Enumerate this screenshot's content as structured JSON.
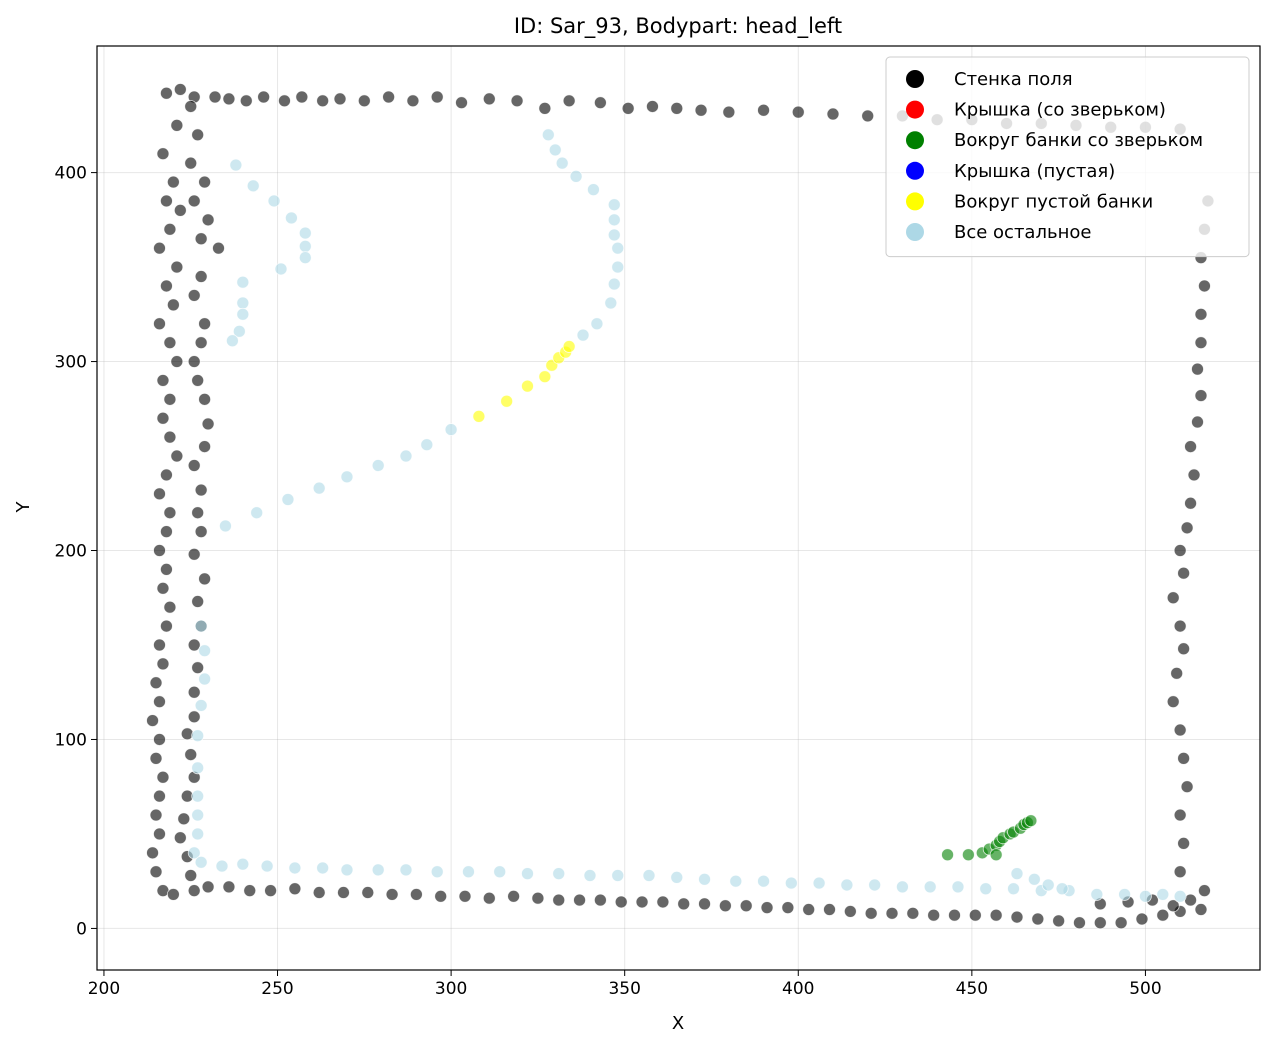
{
  "chart_data": {
    "type": "scatter",
    "title": "ID: Sar_93, Bodypart: head_left",
    "xlabel": "X",
    "ylabel": "Y",
    "xlim": [
      198,
      533
    ],
    "ylim": [
      -22,
      467
    ],
    "xticks": [
      200,
      250,
      300,
      350,
      400,
      450,
      500
    ],
    "yticks": [
      0,
      100,
      200,
      300,
      400
    ],
    "grid": true,
    "legend_position": "top-right",
    "series": [
      {
        "name": "Стенка поля",
        "color": "#000000",
        "alpha": 0.6,
        "points": [
          [
            218,
            442
          ],
          [
            222,
            444
          ],
          [
            226,
            440
          ],
          [
            232,
            440
          ],
          [
            236,
            439
          ],
          [
            241,
            438
          ],
          [
            246,
            440
          ],
          [
            252,
            438
          ],
          [
            257,
            440
          ],
          [
            263,
            438
          ],
          [
            268,
            439
          ],
          [
            275,
            438
          ],
          [
            282,
            440
          ],
          [
            289,
            438
          ],
          [
            296,
            440
          ],
          [
            303,
            437
          ],
          [
            311,
            439
          ],
          [
            319,
            438
          ],
          [
            327,
            434
          ],
          [
            334,
            438
          ],
          [
            343,
            437
          ],
          [
            351,
            434
          ],
          [
            358,
            435
          ],
          [
            365,
            434
          ],
          [
            372,
            433
          ],
          [
            380,
            432
          ],
          [
            390,
            433
          ],
          [
            400,
            432
          ],
          [
            410,
            431
          ],
          [
            420,
            430
          ],
          [
            430,
            430
          ],
          [
            440,
            428
          ],
          [
            450,
            428
          ],
          [
            460,
            426
          ],
          [
            470,
            426
          ],
          [
            480,
            425
          ],
          [
            490,
            424
          ],
          [
            500,
            424
          ],
          [
            510,
            423
          ],
          [
            221,
            425
          ],
          [
            217,
            410
          ],
          [
            220,
            395
          ],
          [
            218,
            385
          ],
          [
            222,
            380
          ],
          [
            219,
            370
          ],
          [
            216,
            360
          ],
          [
            221,
            350
          ],
          [
            218,
            340
          ],
          [
            220,
            330
          ],
          [
            216,
            320
          ],
          [
            219,
            310
          ],
          [
            221,
            300
          ],
          [
            217,
            290
          ],
          [
            219,
            280
          ],
          [
            217,
            270
          ],
          [
            219,
            260
          ],
          [
            221,
            250
          ],
          [
            218,
            240
          ],
          [
            216,
            230
          ],
          [
            219,
            220
          ],
          [
            218,
            210
          ],
          [
            216,
            200
          ],
          [
            218,
            190
          ],
          [
            217,
            180
          ],
          [
            219,
            170
          ],
          [
            218,
            160
          ],
          [
            216,
            150
          ],
          [
            217,
            140
          ],
          [
            215,
            130
          ],
          [
            216,
            120
          ],
          [
            214,
            110
          ],
          [
            216,
            100
          ],
          [
            215,
            90
          ],
          [
            217,
            80
          ],
          [
            216,
            70
          ],
          [
            215,
            60
          ],
          [
            216,
            50
          ],
          [
            214,
            40
          ],
          [
            215,
            30
          ],
          [
            217,
            20
          ],
          [
            220,
            18
          ],
          [
            225,
            435
          ],
          [
            227,
            420
          ],
          [
            225,
            405
          ],
          [
            229,
            395
          ],
          [
            226,
            385
          ],
          [
            230,
            375
          ],
          [
            228,
            365
          ],
          [
            233,
            360
          ],
          [
            228,
            345
          ],
          [
            226,
            335
          ],
          [
            229,
            320
          ],
          [
            228,
            310
          ],
          [
            226,
            300
          ],
          [
            227,
            290
          ],
          [
            229,
            280
          ],
          [
            230,
            267
          ],
          [
            229,
            255
          ],
          [
            226,
            245
          ],
          [
            228,
            232
          ],
          [
            227,
            220
          ],
          [
            228,
            210
          ],
          [
            226,
            198
          ],
          [
            229,
            185
          ],
          [
            227,
            173
          ],
          [
            228,
            160
          ],
          [
            226,
            150
          ],
          [
            227,
            138
          ],
          [
            226,
            125
          ],
          [
            226,
            112
          ],
          [
            224,
            103
          ],
          [
            225,
            92
          ],
          [
            226,
            80
          ],
          [
            224,
            70
          ],
          [
            223,
            58
          ],
          [
            222,
            48
          ],
          [
            224,
            38
          ],
          [
            225,
            28
          ],
          [
            226,
            20
          ],
          [
            230,
            22
          ],
          [
            236,
            22
          ],
          [
            242,
            20
          ],
          [
            248,
            20
          ],
          [
            255,
            21
          ],
          [
            262,
            19
          ],
          [
            269,
            19
          ],
          [
            276,
            19
          ],
          [
            283,
            18
          ],
          [
            290,
            18
          ],
          [
            297,
            17
          ],
          [
            304,
            17
          ],
          [
            311,
            16
          ],
          [
            318,
            17
          ],
          [
            325,
            16
          ],
          [
            331,
            15
          ],
          [
            337,
            15
          ],
          [
            343,
            15
          ],
          [
            349,
            14
          ],
          [
            355,
            14
          ],
          [
            361,
            14
          ],
          [
            367,
            13
          ],
          [
            373,
            13
          ],
          [
            379,
            12
          ],
          [
            385,
            12
          ],
          [
            391,
            11
          ],
          [
            397,
            11
          ],
          [
            403,
            10
          ],
          [
            409,
            10
          ],
          [
            415,
            9
          ],
          [
            421,
            8
          ],
          [
            427,
            8
          ],
          [
            433,
            8
          ],
          [
            439,
            7
          ],
          [
            445,
            7
          ],
          [
            451,
            7
          ],
          [
            457,
            7
          ],
          [
            463,
            6
          ],
          [
            469,
            5
          ],
          [
            475,
            4
          ],
          [
            481,
            3
          ],
          [
            487,
            3
          ],
          [
            493,
            3
          ],
          [
            499,
            5
          ],
          [
            505,
            7
          ],
          [
            510,
            9
          ],
          [
            516,
            10
          ],
          [
            487,
            13
          ],
          [
            495,
            14
          ],
          [
            502,
            15
          ],
          [
            508,
            12
          ],
          [
            513,
            15
          ],
          [
            517,
            20
          ],
          [
            510,
            30
          ],
          [
            511,
            45
          ],
          [
            510,
            60
          ],
          [
            512,
            75
          ],
          [
            511,
            90
          ],
          [
            510,
            105
          ],
          [
            508,
            120
          ],
          [
            509,
            135
          ],
          [
            511,
            148
          ],
          [
            510,
            160
          ],
          [
            508,
            175
          ],
          [
            511,
            188
          ],
          [
            510,
            200
          ],
          [
            512,
            212
          ],
          [
            513,
            225
          ],
          [
            514,
            240
          ],
          [
            513,
            255
          ],
          [
            515,
            268
          ],
          [
            516,
            282
          ],
          [
            515,
            296
          ],
          [
            516,
            310
          ],
          [
            516,
            325
          ],
          [
            517,
            340
          ],
          [
            516,
            355
          ],
          [
            517,
            370
          ],
          [
            518,
            385
          ]
        ]
      },
      {
        "name": "Крышка (со зверьком)",
        "color": "#ff0000",
        "alpha": 0.6,
        "points": []
      },
      {
        "name": "Вокруг банки со зверьком",
        "color": "#008000",
        "alpha": 0.6,
        "points": [
          [
            443,
            39
          ],
          [
            449,
            39
          ],
          [
            453,
            40
          ],
          [
            455,
            42
          ],
          [
            457,
            44
          ],
          [
            458,
            46
          ],
          [
            459,
            48
          ],
          [
            461,
            50
          ],
          [
            462,
            51
          ],
          [
            464,
            53
          ],
          [
            465,
            55
          ],
          [
            466,
            56
          ],
          [
            467,
            57
          ],
          [
            457,
            39
          ]
        ]
      },
      {
        "name": "Крышка (пустая)",
        "color": "#0000ff",
        "alpha": 0.6,
        "points": []
      },
      {
        "name": "Вокруг пустой банки",
        "color": "#ffff00",
        "alpha": 0.6,
        "points": [
          [
            308,
            271
          ],
          [
            316,
            279
          ],
          [
            322,
            287
          ],
          [
            327,
            292
          ],
          [
            329,
            298
          ],
          [
            331,
            302
          ],
          [
            333,
            305
          ],
          [
            334,
            308
          ]
        ]
      },
      {
        "name": "Все остальное",
        "color": "#add8e6",
        "alpha": 0.6,
        "points": [
          [
            235,
            213
          ],
          [
            244,
            220
          ],
          [
            253,
            227
          ],
          [
            262,
            233
          ],
          [
            270,
            239
          ],
          [
            279,
            245
          ],
          [
            287,
            250
          ],
          [
            293,
            256
          ],
          [
            300,
            264
          ],
          [
            338,
            314
          ],
          [
            342,
            320
          ],
          [
            346,
            331
          ],
          [
            347,
            341
          ],
          [
            348,
            350
          ],
          [
            348,
            360
          ],
          [
            347,
            367
          ],
          [
            347,
            375
          ],
          [
            347,
            383
          ],
          [
            341,
            391
          ],
          [
            336,
            398
          ],
          [
            332,
            405
          ],
          [
            330,
            412
          ],
          [
            328,
            420
          ],
          [
            238,
            404
          ],
          [
            243,
            393
          ],
          [
            249,
            385
          ],
          [
            254,
            376
          ],
          [
            258,
            368
          ],
          [
            258,
            361
          ],
          [
            258,
            355
          ],
          [
            251,
            349
          ],
          [
            240,
            342
          ],
          [
            240,
            331
          ],
          [
            240,
            325
          ],
          [
            239,
            316
          ],
          [
            237,
            311
          ],
          [
            234,
            33
          ],
          [
            240,
            34
          ],
          [
            247,
            33
          ],
          [
            255,
            32
          ],
          [
            263,
            32
          ],
          [
            270,
            31
          ],
          [
            279,
            31
          ],
          [
            287,
            31
          ],
          [
            296,
            30
          ],
          [
            305,
            30
          ],
          [
            314,
            30
          ],
          [
            322,
            29
          ],
          [
            331,
            29
          ],
          [
            340,
            28
          ],
          [
            348,
            28
          ],
          [
            357,
            28
          ],
          [
            365,
            27
          ],
          [
            373,
            26
          ],
          [
            382,
            25
          ],
          [
            390,
            25
          ],
          [
            398,
            24
          ],
          [
            406,
            24
          ],
          [
            414,
            23
          ],
          [
            422,
            23
          ],
          [
            430,
            22
          ],
          [
            438,
            22
          ],
          [
            446,
            22
          ],
          [
            454,
            21
          ],
          [
            462,
            21
          ],
          [
            470,
            20
          ],
          [
            478,
            20
          ],
          [
            486,
            18
          ],
          [
            494,
            18
          ],
          [
            500,
            17
          ],
          [
            505,
            18
          ],
          [
            510,
            17
          ],
          [
            228,
            160
          ],
          [
            229,
            147
          ],
          [
            229,
            132
          ],
          [
            228,
            118
          ],
          [
            227,
            102
          ],
          [
            227,
            85
          ],
          [
            227,
            70
          ],
          [
            227,
            60
          ],
          [
            227,
            50
          ],
          [
            226,
            40
          ],
          [
            228,
            35
          ],
          [
            463,
            29
          ],
          [
            468,
            26
          ],
          [
            472,
            23
          ],
          [
            476,
            21
          ]
        ]
      }
    ]
  }
}
